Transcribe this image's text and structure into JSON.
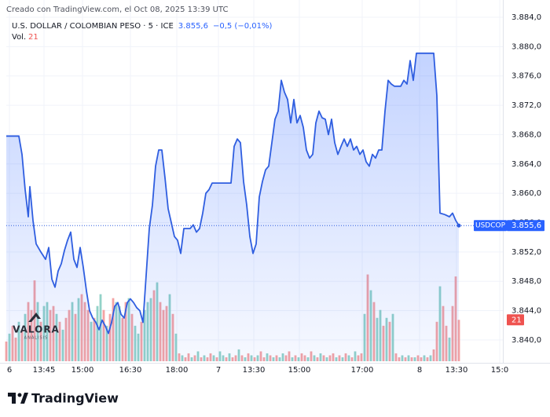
{
  "chart_data": {
    "type": "area",
    "credit": "Creado con TradingView.com, el Oct 08, 2025 13:39 UTC",
    "title": "U.S. DOLLAR / COLOMBIAN PESO · 5 · ICE",
    "last_label": "3.855,6",
    "change": "−0,5 (−0,01%)",
    "footer": "TradingView",
    "watermark": {
      "title": "VALORA",
      "subtitle": "ANÁLISIS"
    },
    "grid": true,
    "xlim": [
      0,
      158
    ],
    "xticks": [
      {
        "value": 1,
        "label": "6"
      },
      {
        "value": 12,
        "label": "13:45"
      },
      {
        "value": 24.25,
        "label": "15:00"
      },
      {
        "value": 39.5,
        "label": "16:30"
      },
      {
        "value": 54.25,
        "label": "18:00"
      },
      {
        "value": 67.5,
        "label": "7"
      },
      {
        "value": 78.75,
        "label": "13:30"
      },
      {
        "value": 93.25,
        "label": "15:00"
      },
      {
        "value": 113.25,
        "label": "17:00"
      },
      {
        "value": 131.5,
        "label": "8"
      },
      {
        "value": 143.25,
        "label": "13:30"
      },
      {
        "value": 157,
        "label": "15:0"
      }
    ],
    "ylim": [
      3837.1,
      3885.5
    ],
    "yticks": [
      {
        "value": 3884,
        "label": "3.884,0"
      },
      {
        "value": 3880,
        "label": "3.880,0"
      },
      {
        "value": 3876,
        "label": "3.876,0"
      },
      {
        "value": 3872,
        "label": "3.872,0"
      },
      {
        "value": 3868,
        "label": "3.868,0"
      },
      {
        "value": 3864,
        "label": "3.864,0"
      },
      {
        "value": 3860,
        "label": "3.860,0"
      },
      {
        "value": 3856,
        "label": "3.856,0"
      },
      {
        "value": 3852,
        "label": "3.852,0"
      },
      {
        "value": 3848,
        "label": "3.848,0"
      },
      {
        "value": 3844,
        "label": "3.844,0"
      },
      {
        "value": 3840,
        "label": "3.840,0"
      }
    ],
    "y2lim": [
      0,
      180
    ],
    "series": [
      {
        "name": "USDCOP",
        "color": "#2f5ee0",
        "x": [
          0,
          4,
          5,
          6,
          7,
          7.5,
          8.5,
          9.5,
          11,
          12.5,
          13.5,
          14.5,
          15.5,
          16.5,
          17.5,
          18.5,
          19.5,
          20.5,
          21.5,
          22.5,
          23.5,
          24.5,
          25.5,
          26.5,
          27.5,
          28.5,
          29.5,
          30.5,
          31.5,
          32.5,
          33.5,
          34.5,
          35.5,
          36.5,
          37.5,
          38.5,
          39.5,
          40.5,
          41.5,
          42.5,
          43.5,
          44.5,
          45.5,
          46.5,
          47.5,
          48.5,
          49.5,
          50.5,
          51.5,
          52.5,
          53.5,
          54.5,
          55.5,
          56.5,
          58.5,
          59.5,
          60.5,
          61.5,
          62.5,
          63.5,
          64.5,
          65.5,
          71.5,
          72.5,
          73.5,
          74.5,
          75.5,
          76.5,
          77.5,
          78.5,
          79.5,
          80.5,
          81.5,
          82.5,
          83.5,
          84.5,
          85.5,
          86.5,
          87.5,
          88.5,
          89.5,
          90.5,
          91.5,
          92.5,
          93.5,
          94.5,
          95.5,
          96.5,
          97.5,
          98.5,
          99.5,
          100.5,
          101.5,
          102.5,
          103.5,
          104.5,
          105.5,
          106.5,
          107.5,
          108.5,
          109.5,
          110.5,
          111.5,
          112.5,
          113.5,
          114.5,
          115.5,
          116.5,
          117.5,
          118.5,
          119.5,
          120.5,
          121.5,
          122.5,
          123.5,
          125.5,
          126.5,
          127.5,
          128.5,
          129.5,
          130.5,
          136,
          137,
          138,
          139.5,
          141,
          142,
          143,
          144
        ],
        "values": [
          3867.8,
          3867.8,
          3865.3,
          3860.5,
          3856.8,
          3860.9,
          3856.3,
          3853.1,
          3852.0,
          3851.0,
          3852.6,
          3848.3,
          3847.2,
          3849.4,
          3850.4,
          3852.2,
          3853.6,
          3854.7,
          3851.0,
          3849.9,
          3852.6,
          3849.9,
          3846.7,
          3844.0,
          3843.0,
          3842.4,
          3841.4,
          3842.7,
          3841.9,
          3840.9,
          3842.4,
          3844.6,
          3845.1,
          3843.5,
          3843.0,
          3845.1,
          3845.6,
          3845.1,
          3844.4,
          3844.0,
          3842.4,
          3848.8,
          3855.2,
          3858.4,
          3863.7,
          3865.9,
          3865.9,
          3862.1,
          3857.9,
          3856.0,
          3854.1,
          3853.6,
          3851.8,
          3855.2,
          3855.2,
          3855.7,
          3854.7,
          3855.2,
          3857.3,
          3860.0,
          3860.5,
          3861.4,
          3861.4,
          3866.4,
          3867.4,
          3866.9,
          3861.6,
          3858.4,
          3854.1,
          3851.8,
          3853.1,
          3859.5,
          3861.6,
          3863.2,
          3863.7,
          3866.9,
          3870.1,
          3871.2,
          3875.4,
          3873.8,
          3872.8,
          3869.6,
          3872.8,
          3869.6,
          3870.6,
          3869.0,
          3865.9,
          3864.8,
          3865.3,
          3869.6,
          3871.2,
          3870.3,
          3870.1,
          3868.0,
          3870.1,
          3866.9,
          3865.3,
          3866.4,
          3867.4,
          3866.4,
          3867.4,
          3865.9,
          3866.4,
          3865.3,
          3865.9,
          3864.3,
          3863.7,
          3865.3,
          3864.8,
          3865.9,
          3865.9,
          3871.2,
          3875.4,
          3874.9,
          3874.6,
          3874.6,
          3875.4,
          3874.9,
          3878.1,
          3875.4,
          3879.1,
          3879.1,
          3873.3,
          3857.3,
          3857.1,
          3856.8,
          3857.3,
          3856.3,
          3855.6
        ]
      }
    ],
    "volume": {
      "label": "Vol.",
      "axis": "y2",
      "x": [
        0,
        1,
        2,
        3,
        4,
        5,
        6,
        7,
        8,
        9,
        10,
        11,
        12,
        13,
        14,
        15,
        16,
        17,
        18,
        19,
        20,
        21,
        22,
        23,
        24,
        25,
        26,
        27,
        28,
        29,
        30,
        31,
        32,
        33,
        34,
        35,
        36,
        37,
        38,
        39,
        40,
        41,
        42,
        43,
        44,
        45,
        46,
        47,
        48,
        49,
        50,
        51,
        52,
        53,
        54,
        55,
        56,
        57,
        58,
        59,
        60,
        61,
        62,
        63,
        64,
        65,
        66,
        67,
        68,
        69,
        70,
        71,
        72,
        73,
        74,
        75,
        76,
        77,
        78,
        79,
        80,
        81,
        82,
        83,
        84,
        85,
        86,
        87,
        88,
        89,
        90,
        91,
        92,
        93,
        94,
        95,
        96,
        97,
        98,
        99,
        100,
        101,
        102,
        103,
        104,
        105,
        106,
        107,
        108,
        109,
        110,
        111,
        112,
        113,
        114,
        115,
        116,
        117,
        118,
        119,
        120,
        121,
        122,
        123,
        124,
        125,
        126,
        127,
        128,
        129,
        130,
        131,
        132,
        133,
        134,
        135,
        136,
        137,
        138,
        139,
        140,
        141,
        142,
        143,
        144
      ],
      "values": [
        10,
        14,
        18,
        12,
        20,
        16,
        24,
        30,
        26,
        41,
        30,
        20,
        28,
        30,
        26,
        28,
        24,
        20,
        16,
        22,
        26,
        30,
        24,
        32,
        34,
        30,
        26,
        20,
        22,
        28,
        34,
        26,
        18,
        24,
        32,
        30,
        28,
        22,
        30,
        32,
        24,
        18,
        14,
        20,
        26,
        30,
        32,
        36,
        40,
        30,
        26,
        28,
        34,
        24,
        14,
        4,
        3,
        2,
        4,
        2,
        3,
        5,
        2,
        3,
        2,
        4,
        3,
        2,
        5,
        3,
        2,
        4,
        2,
        3,
        6,
        3,
        2,
        4,
        3,
        2,
        3,
        5,
        2,
        4,
        3,
        2,
        3,
        2,
        4,
        3,
        5,
        2,
        3,
        2,
        4,
        3,
        2,
        5,
        3,
        2,
        4,
        3,
        2,
        3,
        4,
        2,
        3,
        2,
        4,
        3,
        2,
        5,
        3,
        4,
        24,
        44,
        36,
        30,
        22,
        26,
        18,
        22,
        20,
        24,
        4,
        2,
        3,
        2,
        3,
        2,
        2,
        3,
        2,
        3,
        2,
        3,
        6,
        20,
        38,
        28,
        18,
        12,
        28,
        43,
        21
      ],
      "colors": [
        "#f4a3a3",
        "#92d2c8",
        "#f4a3a3",
        "#f4a3a3",
        "#92d2c8",
        "#f4a3a3",
        "#92d2c8",
        "#f4a3a3",
        "#f4a3a3",
        "#f4a3a3",
        "#92d2c8",
        "#f4a3a3",
        "#92d2c8",
        "#92d2c8",
        "#f4a3a3",
        "#f4a3a3",
        "#92d2c8",
        "#f4a3a3",
        "#92d2c8",
        "#f4a3a3",
        "#f4a3a3",
        "#92d2c8",
        "#f4a3a3",
        "#92d2c8",
        "#f4a3a3",
        "#f4a3a3",
        "#f4a3a3",
        "#92d2c8",
        "#f4a3a3",
        "#92d2c8",
        "#92d2c8",
        "#f4a3a3",
        "#92d2c8",
        "#f4a3a3",
        "#f4a3a3",
        "#92d2c8",
        "#92d2c8",
        "#f4a3a3",
        "#f4a3a3",
        "#92d2c8",
        "#f4a3a3",
        "#92d2c8",
        "#92d2c8",
        "#f4a3a3",
        "#92d2c8",
        "#92d2c8",
        "#92d2c8",
        "#f4a3a3",
        "#92d2c8",
        "#f4a3a3",
        "#f4a3a3",
        "#f4a3a3",
        "#92d2c8",
        "#f4a3a3",
        "#92d2c8",
        "#f4a3a3",
        "#92d2c8",
        "#f4a3a3",
        "#f4a3a3",
        "#92d2c8",
        "#f4a3a3",
        "#92d2c8",
        "#f4a3a3",
        "#92d2c8",
        "#f4a3a3",
        "#f4a3a3",
        "#92d2c8",
        "#f4a3a3",
        "#92d2c8",
        "#92d2c8",
        "#f4a3a3",
        "#92d2c8",
        "#f4a3a3",
        "#f4a3a3",
        "#92d2c8",
        "#f4a3a3",
        "#92d2c8",
        "#f4a3a3",
        "#92d2c8",
        "#f4a3a3",
        "#92d2c8",
        "#f4a3a3",
        "#f4a3a3",
        "#92d2c8",
        "#f4a3a3",
        "#92d2c8",
        "#f4a3a3",
        "#92d2c8",
        "#92d2c8",
        "#f4a3a3",
        "#f4a3a3",
        "#92d2c8",
        "#f4a3a3",
        "#92d2c8",
        "#f4a3a3",
        "#f4a3a3",
        "#92d2c8",
        "#f4a3a3",
        "#92d2c8",
        "#f4a3a3",
        "#92d2c8",
        "#f4a3a3",
        "#92d2c8",
        "#f4a3a3",
        "#f4a3a3",
        "#92d2c8",
        "#f4a3a3",
        "#92d2c8",
        "#f4a3a3",
        "#92d2c8",
        "#f4a3a3",
        "#92d2c8",
        "#f4a3a3",
        "#f4a3a3",
        "#92d2c8",
        "#f4a3a3",
        "#92d2c8",
        "#f4a3a3",
        "#92d2c8",
        "#92d2c8",
        "#f4a3a3",
        "#92d2c8",
        "#f4a3a3",
        "#92d2c8",
        "#f4a3a3",
        "#f4a3a3",
        "#92d2c8",
        "#f4a3a3",
        "#92d2c8",
        "#f4a3a3",
        "#92d2c8",
        "#f4a3a3",
        "#f4a3a3",
        "#92d2c8",
        "#f4a3a3",
        "#92d2c8",
        "#f4a3a3",
        "#f4a3a3",
        "#92d2c8",
        "#f4a3a3",
        "#f4a3a3",
        "#92d2c8",
        "#f4a3a3",
        "#f4a3a3",
        "#f4a3a3"
      ]
    }
  }
}
